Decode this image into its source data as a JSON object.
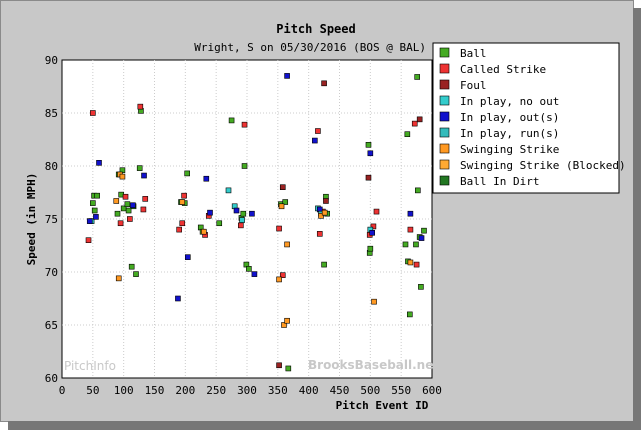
{
  "chart_data": {
    "type": "scatter",
    "title": "Pitch Speed",
    "subtitle": "Wright, S on 05/30/2016 (BOS @ BAL)",
    "xlabel": "Pitch Event ID",
    "ylabel": "Speed (in MPH)",
    "xlim": [
      0,
      600
    ],
    "ylim": [
      60,
      90
    ],
    "xticks": [
      0,
      50,
      100,
      150,
      200,
      250,
      300,
      350,
      400,
      450,
      500,
      550,
      600
    ],
    "yticks": [
      60,
      65,
      70,
      75,
      80,
      85,
      90
    ],
    "grid": true,
    "legend_position": "top-right",
    "watermarks": [
      "PitchInfo",
      "BrooksBaseball.net"
    ],
    "series": [
      {
        "name": "Ball",
        "color": "#44aa22",
        "points": [
          [
            50,
            76.5
          ],
          [
            52,
            77.2
          ],
          [
            53,
            75.8
          ],
          [
            57,
            77.2
          ],
          [
            90,
            75.5
          ],
          [
            92,
            79.2
          ],
          [
            96,
            77.3
          ],
          [
            98,
            79.6
          ],
          [
            100,
            76.0
          ],
          [
            106,
            76.4
          ],
          [
            108,
            75.8
          ],
          [
            113,
            70.5
          ],
          [
            116,
            76.2
          ],
          [
            120,
            69.8
          ],
          [
            126,
            79.8
          ],
          [
            128,
            85.2
          ],
          [
            193,
            76.6
          ],
          [
            199,
            76.5
          ],
          [
            203,
            79.3
          ],
          [
            225,
            74.2
          ],
          [
            228,
            73.8
          ],
          [
            255,
            74.6
          ],
          [
            275,
            84.3
          ],
          [
            291,
            75.1
          ],
          [
            294,
            75.5
          ],
          [
            296,
            80.0
          ],
          [
            299,
            70.7
          ],
          [
            303,
            70.3
          ],
          [
            355,
            76.4
          ],
          [
            362,
            76.6
          ],
          [
            367,
            60.9
          ],
          [
            425,
            70.7
          ],
          [
            428,
            77.1
          ],
          [
            430,
            75.5
          ],
          [
            497,
            82.0
          ],
          [
            499,
            71.8
          ],
          [
            500,
            72.2
          ],
          [
            557,
            72.6
          ],
          [
            560,
            83.0
          ],
          [
            561,
            71.0
          ],
          [
            564,
            66.0
          ],
          [
            574,
            72.6
          ],
          [
            576,
            88.4
          ],
          [
            577,
            77.7
          ],
          [
            580,
            73.3
          ],
          [
            582,
            68.6
          ],
          [
            587,
            73.9
          ]
        ]
      },
      {
        "name": "Called Strike",
        "color": "#ee3333",
        "points": [
          [
            43,
            73.0
          ],
          [
            50,
            85.0
          ],
          [
            95,
            74.6
          ],
          [
            103,
            77.1
          ],
          [
            110,
            75.0
          ],
          [
            127,
            85.6
          ],
          [
            132,
            75.9
          ],
          [
            135,
            76.9
          ],
          [
            190,
            74.0
          ],
          [
            195,
            74.6
          ],
          [
            198,
            77.2
          ],
          [
            232,
            73.5
          ],
          [
            238,
            75.3
          ],
          [
            290,
            74.4
          ],
          [
            296,
            83.9
          ],
          [
            352,
            74.1
          ],
          [
            358,
            69.7
          ],
          [
            415,
            83.3
          ],
          [
            418,
            73.6
          ],
          [
            423,
            75.7
          ],
          [
            499,
            73.5
          ],
          [
            505,
            74.3
          ],
          [
            510,
            75.7
          ],
          [
            565,
            74.0
          ],
          [
            572,
            84.0
          ],
          [
            575,
            70.7
          ]
        ]
      },
      {
        "name": "Foul",
        "color": "#992222",
        "points": [
          [
            352,
            61.2
          ],
          [
            358,
            78.0
          ],
          [
            425,
            87.8
          ],
          [
            428,
            76.7
          ],
          [
            497,
            78.9
          ],
          [
            580,
            84.4
          ]
        ]
      },
      {
        "name": "In play, no out",
        "color": "#33cccc",
        "points": [
          [
            48,
            74.8
          ],
          [
            270,
            77.7
          ],
          [
            280,
            76.2
          ],
          [
            292,
            74.9
          ],
          [
            415,
            76.0
          ],
          [
            500,
            74.0
          ]
        ]
      },
      {
        "name": "In play, out(s)",
        "color": "#1111cc",
        "points": [
          [
            45,
            74.8
          ],
          [
            55,
            75.2
          ],
          [
            60,
            80.3
          ],
          [
            115,
            76.3
          ],
          [
            133,
            79.1
          ],
          [
            188,
            67.5
          ],
          [
            204,
            71.4
          ],
          [
            234,
            78.8
          ],
          [
            240,
            75.6
          ],
          [
            283,
            75.8
          ],
          [
            308,
            75.5
          ],
          [
            312,
            69.8
          ],
          [
            365,
            88.5
          ],
          [
            410,
            82.4
          ],
          [
            418,
            75.9
          ],
          [
            500,
            81.2
          ],
          [
            503,
            73.7
          ],
          [
            565,
            75.5
          ],
          [
            583,
            73.2
          ]
        ]
      },
      {
        "name": "In play, run(s)",
        "color": "#33bbbb",
        "points": [
          [
            420,
            75.5
          ]
        ]
      },
      {
        "name": "Swinging Strike",
        "color": "#ff9922",
        "points": [
          [
            88,
            76.7
          ],
          [
            92,
            69.4
          ],
          [
            94,
            79.2
          ],
          [
            98,
            79.0
          ],
          [
            195,
            76.6
          ],
          [
            230,
            73.8
          ],
          [
            352,
            69.3
          ],
          [
            356,
            76.2
          ],
          [
            360,
            65.0
          ],
          [
            365,
            65.4
          ],
          [
            365,
            72.6
          ],
          [
            420,
            75.3
          ],
          [
            426,
            75.6
          ],
          [
            506,
            67.2
          ],
          [
            565,
            70.9
          ]
        ]
      },
      {
        "name": "Swinging Strike (Blocked)",
        "color": "#ffaa33",
        "points": []
      },
      {
        "name": "Ball In Dirt",
        "color": "#227722",
        "points": []
      }
    ]
  }
}
